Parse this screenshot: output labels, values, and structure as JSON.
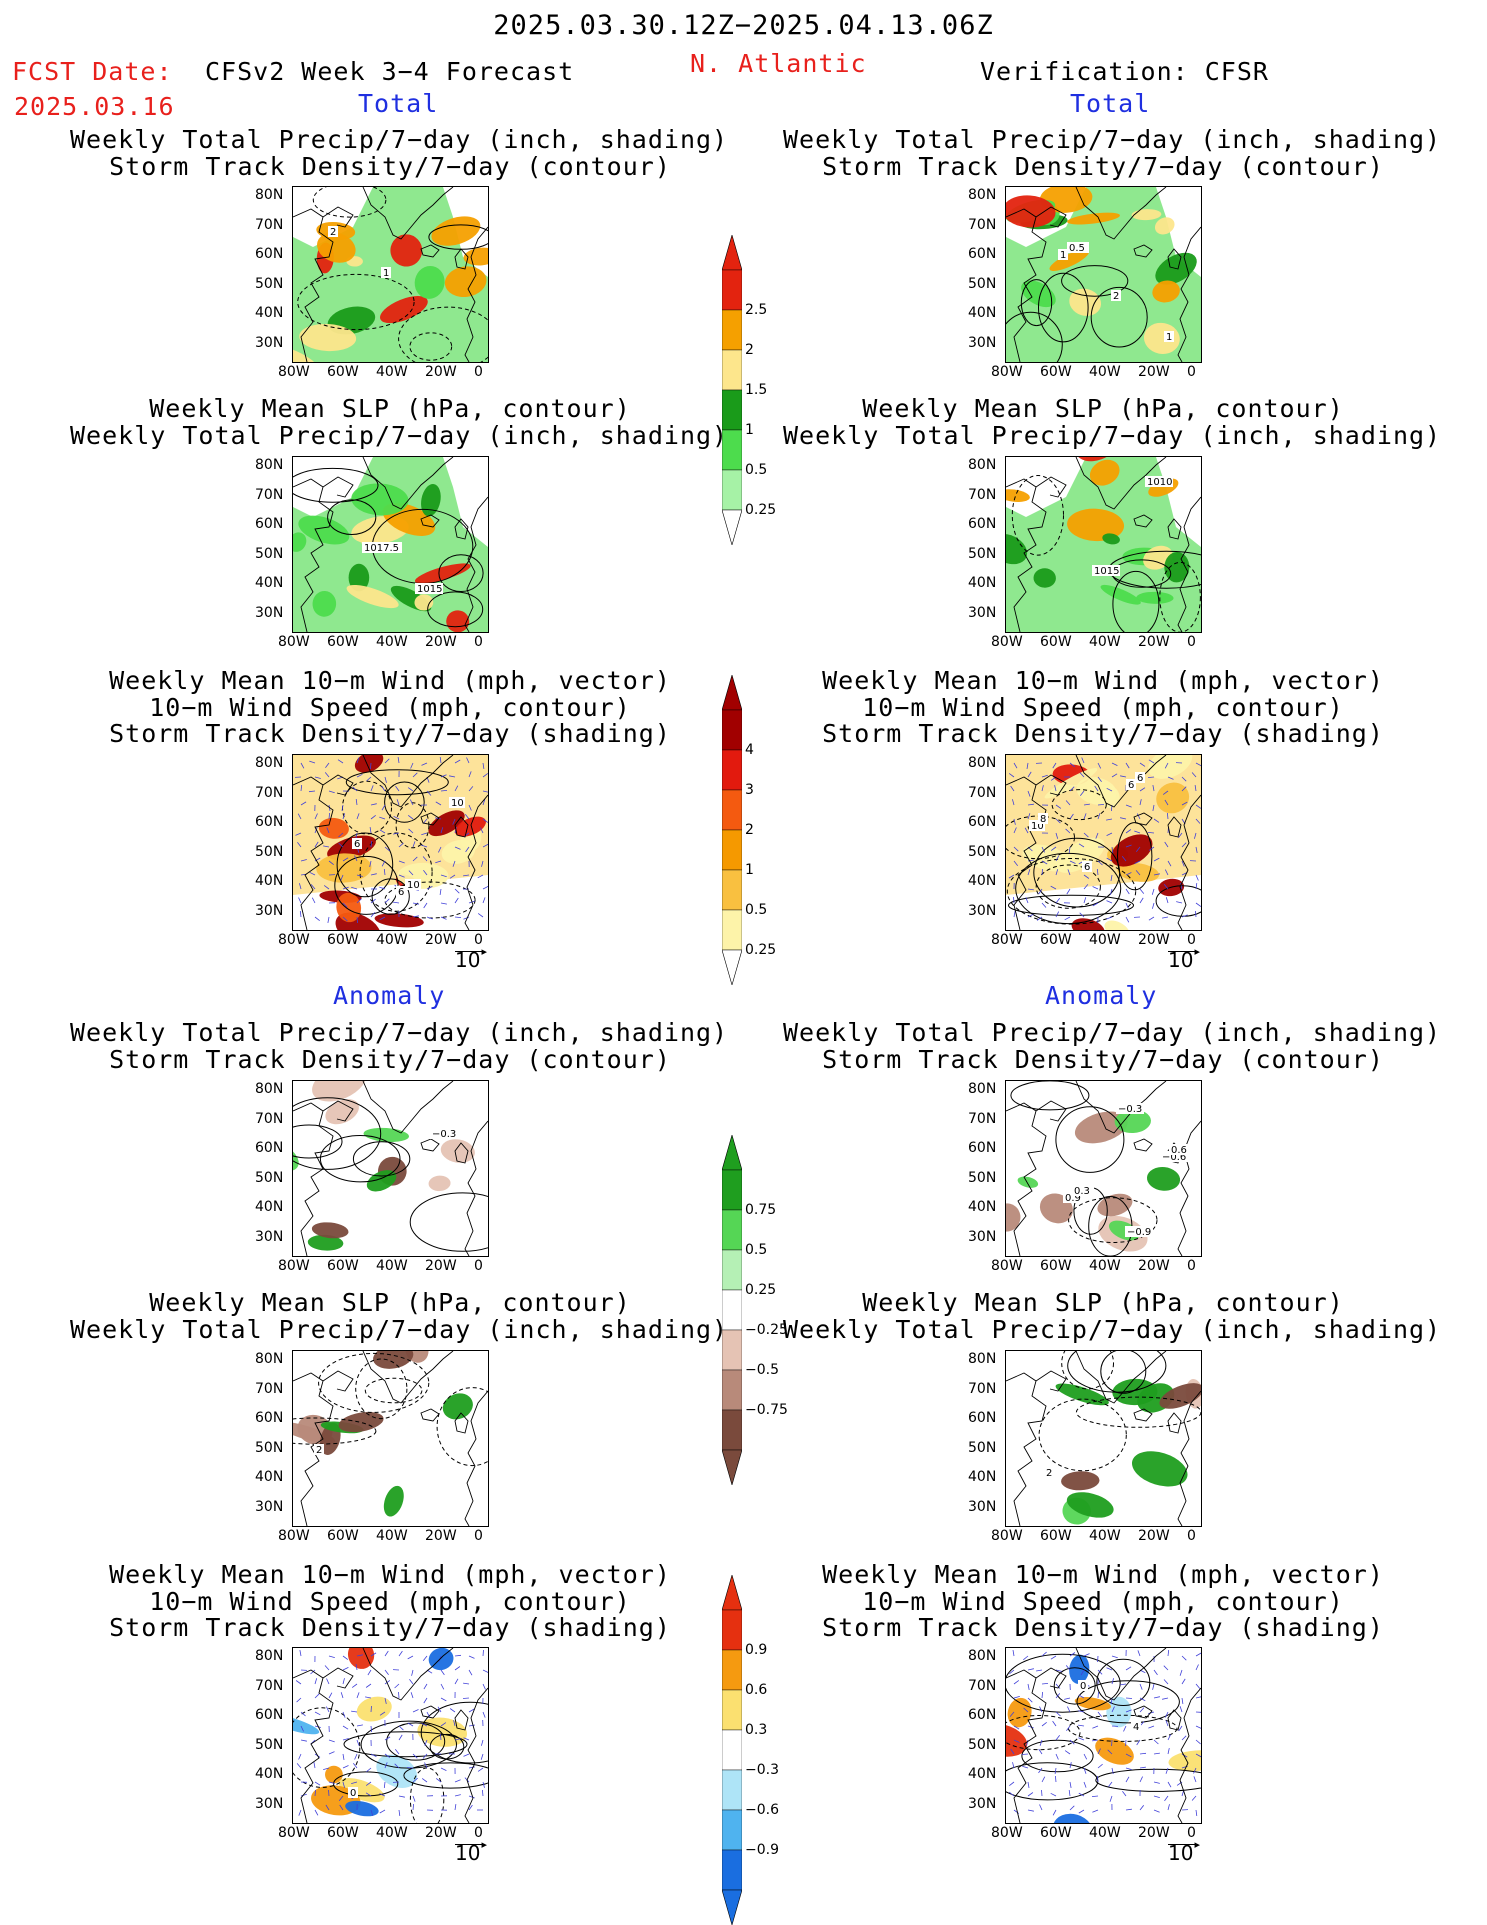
{
  "header": {
    "period": "2025.03.30.12Z−2025.04.13.06Z",
    "fcst_label": "FCST Date:",
    "fcst_date": "2025.03.16",
    "model": "CFSv2 Week 3−4 Forecast",
    "region": "N. Atlantic",
    "verification": "Verification: CFSR"
  },
  "sections": {
    "total": "Total",
    "anomaly": "Anomaly"
  },
  "titles": {
    "precip_track": [
      "Weekly Total Precip/7−day (inch, shading)",
      "Storm Track Density/7−day (contour)"
    ],
    "slp_precip": [
      "Weekly Mean SLP (hPa, contour)",
      "Weekly Total Precip/7−day (inch, shading)"
    ],
    "wind_track": [
      "Weekly Mean 10−m Wind (mph, vector)",
      "10−m Wind Speed (mph, contour)",
      "Storm Track Density/7−day (shading)"
    ]
  },
  "axes": {
    "lat_ticks": [
      "80N",
      "70N",
      "60N",
      "50N",
      "40N",
      "30N"
    ],
    "lon_ticks": [
      "80W",
      "60W",
      "40W",
      "20W",
      "0"
    ]
  },
  "vector_ref": "10",
  "colorbars": [
    {
      "name": "precip-total",
      "labels": [
        "2.5",
        "2",
        "1.5",
        "1",
        "0.5",
        "0.25"
      ],
      "colors": [
        "#e3230f",
        "#f5a000",
        "#fde68c",
        "#1a9b1a",
        "#4ddc4d",
        "#a6f2a6"
      ]
    },
    {
      "name": "track-total",
      "labels": [
        "4",
        "3",
        "2",
        "1",
        "0.5",
        "0.25"
      ],
      "colors": [
        "#a10000",
        "#e21a0e",
        "#f45a10",
        "#f59900",
        "#f9c040",
        "#fdf3a9"
      ]
    },
    {
      "name": "precip-anom",
      "labels": [
        "0.75",
        "0.5",
        "0.25",
        "−0.25",
        "−0.5",
        "−0.75"
      ],
      "colors": [
        "#1f9e1f",
        "#55d655",
        "#b5f0b5",
        "#ffffff",
        "#e5c3b4",
        "#b88a7a",
        "#7a4a3c"
      ]
    },
    {
      "name": "track-anom",
      "labels": [
        "0.9",
        "0.6",
        "0.3",
        "−0.3",
        "−0.6",
        "−0.9"
      ],
      "colors": [
        "#e53010",
        "#f59a10",
        "#fbe070",
        "#ffffff",
        "#aee4f7",
        "#4fb3ef",
        "#1a6ee0"
      ]
    }
  ],
  "contour_labels": {
    "t1l": [
      "2",
      "1"
    ],
    "t1r": [
      "1",
      "2",
      "1",
      "0.5"
    ],
    "t2l": [
      "1017.5",
      "1015"
    ],
    "t2r": [
      "1015",
      "1010"
    ],
    "t3l": [
      "6",
      "10",
      "6",
      "10"
    ],
    "t3r": [
      "6",
      "10",
      "6",
      "6",
      "8"
    ],
    "a1l": [
      "−0.3"
    ],
    "a1r": [
      "−0.6",
      "0.9",
      "−0.3",
      "0.6",
      "0.3",
      "−0.9"
    ],
    "a2l": [
      "2"
    ],
    "a2r": [
      "2"
    ],
    "a3l": [
      "0"
    ],
    "a3r": [
      "0",
      "4"
    ]
  }
}
